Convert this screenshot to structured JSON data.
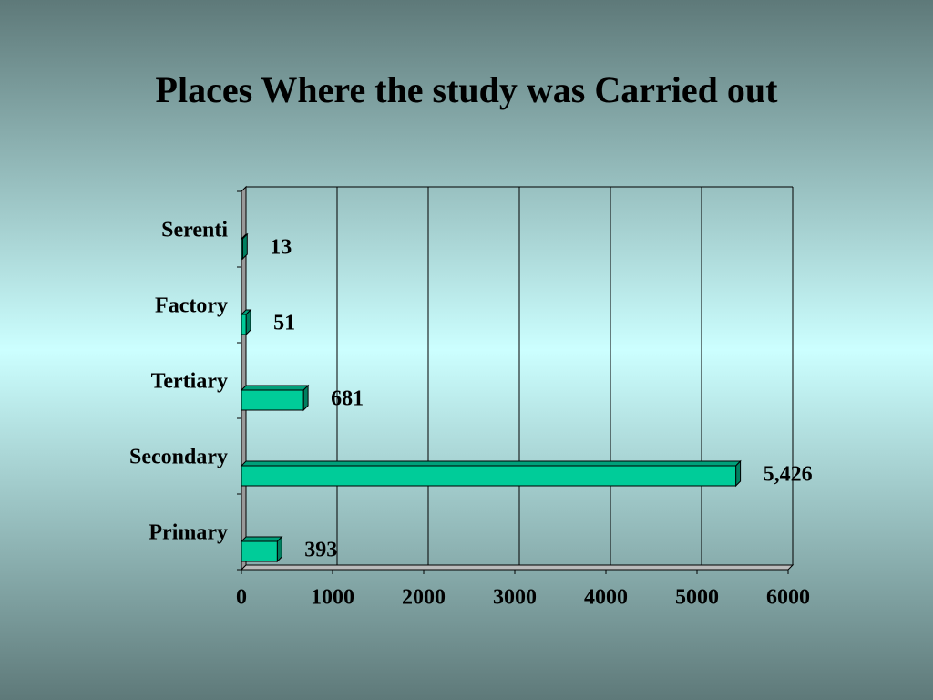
{
  "chart_data": {
    "type": "bar",
    "orientation": "horizontal",
    "title": "Places Where the study was Carried out",
    "categories": [
      "Serenti",
      "Factory",
      "Tertiary",
      "Secondary",
      "Primary"
    ],
    "values": [
      13,
      51,
      681,
      5426,
      393
    ],
    "value_labels": [
      "13",
      "51",
      "681",
      "5,426",
      "393"
    ],
    "color": "#00cc99",
    "xlim": [
      0,
      6000
    ],
    "xticks": [
      0,
      1000,
      2000,
      3000,
      4000,
      5000,
      6000
    ],
    "grid": true
  }
}
